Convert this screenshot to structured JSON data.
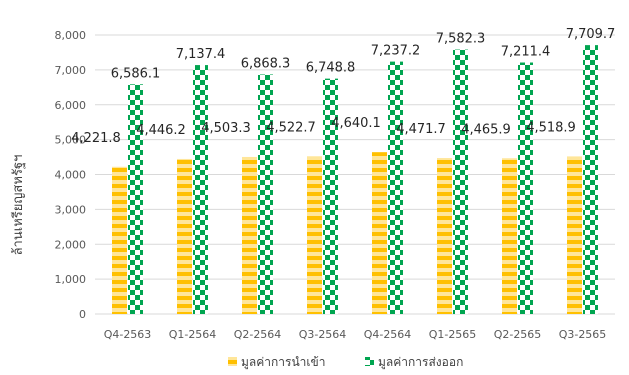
{
  "chart_data": {
    "type": "bar",
    "title": "",
    "xlabel": "",
    "ylabel": "ล้านเหรียญสหรัฐฯ",
    "categories": [
      "Q4-2563",
      "Q1-2564",
      "Q2-2564",
      "Q3-2564",
      "Q4-2564",
      "Q1-2565",
      "Q2-2565",
      "Q3-2565"
    ],
    "series": [
      {
        "name": "มูลค่าการนำเข้า",
        "values": [
          4221.8,
          4446.2,
          4503.3,
          4522.7,
          4640.1,
          4471.7,
          4465.9,
          4518.9
        ],
        "labels": [
          "4,221.8",
          "4,446.2",
          "4,503.3",
          "4,522.7",
          "4,640.1",
          "4,471.7",
          "4,465.9",
          "4,518.9"
        ],
        "color": "#FFC000",
        "pattern": "horizontal-stripes"
      },
      {
        "name": "มูลค่าการส่งออก",
        "values": [
          6586.1,
          7137.4,
          6868.3,
          6748.8,
          7237.2,
          7582.3,
          7211.4,
          7709.7
        ],
        "labels": [
          "6,586.1",
          "7,137.4",
          "6,868.3",
          "6,748.8",
          "7,237.2",
          "7,582.3",
          "7,211.4",
          "7,709.7"
        ],
        "color": "#00A550",
        "pattern": "checkerboard"
      }
    ],
    "ylim": [
      0,
      8000
    ],
    "yticks": [
      0,
      1000,
      2000,
      3000,
      4000,
      5000,
      6000,
      7000,
      8000
    ],
    "ytick_labels": [
      "0",
      "1,000",
      "2,000",
      "3,000",
      "4,000",
      "5,000",
      "6,000",
      "7,000",
      "8,000"
    ],
    "grid": true,
    "legend_position": "bottom"
  }
}
